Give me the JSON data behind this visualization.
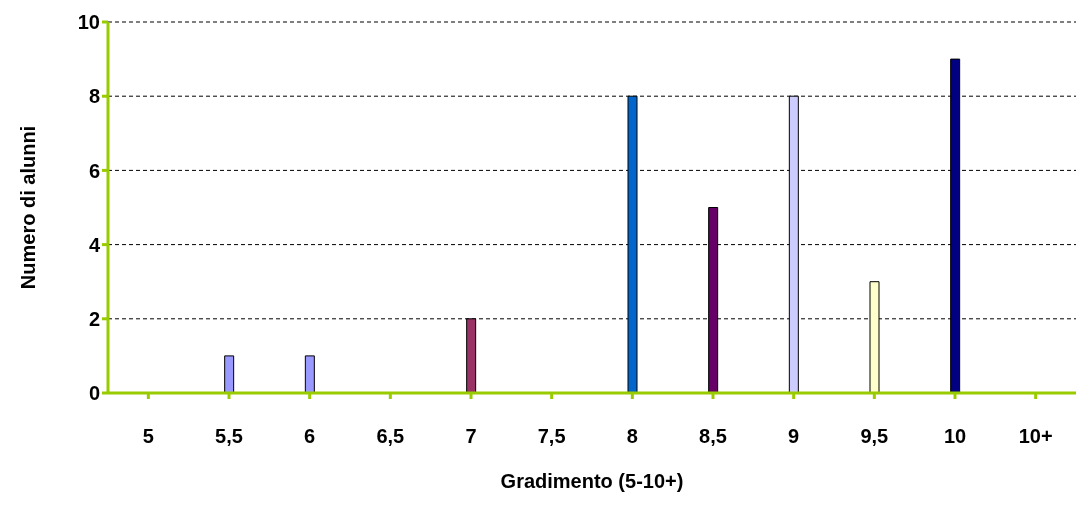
{
  "chart_data": {
    "type": "bar",
    "xlabel": "Gradimento (5-10+)",
    "ylabel": "Numero di alunni",
    "categories": [
      "5",
      "5,5",
      "6",
      "6,5",
      "7",
      "7,5",
      "8",
      "8,5",
      "9",
      "9,5",
      "10",
      "10+"
    ],
    "values": [
      0,
      1,
      1,
      0,
      2,
      0,
      8,
      5,
      8,
      3,
      9,
      0
    ],
    "colors": [
      "#9999ff",
      "#9999ff",
      "#9999ff",
      "#993366",
      "#993366",
      "#0066cc",
      "#0066cc",
      "#660066",
      "#ccccff",
      "#ffffcc",
      "#000080",
      "#000080"
    ],
    "ylim": [
      0,
      10
    ],
    "yticks": [
      0,
      2,
      4,
      6,
      8,
      10
    ],
    "grid": "y",
    "legend": false
  }
}
